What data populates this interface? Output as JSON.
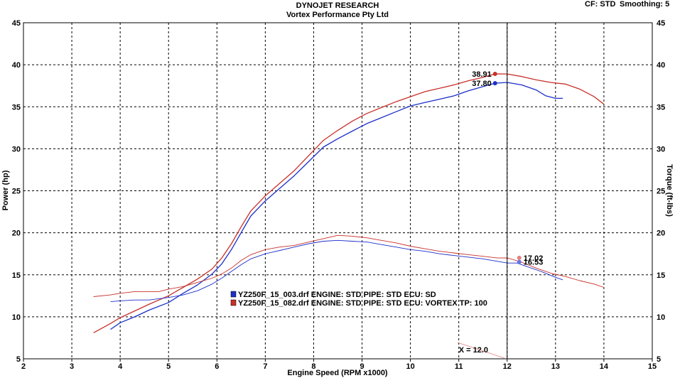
{
  "header": {
    "title": "DYNOJET RESEARCH",
    "subtitle": "Vortex Performance Pty Ltd",
    "cf_label": "CF: STD",
    "smoothing_label": "Smoothing: 5"
  },
  "colors": {
    "blue": "#1c2fc8",
    "red": "#c8302a",
    "blue_light": "#6c74e0",
    "red_light": "#e6817a",
    "grid": "#000000"
  },
  "chart_data": {
    "type": "line",
    "xlabel": "Engine Speed (RPM x1000)",
    "ylabel": "Power (hp)",
    "y2label": "Torque (ft-lbs)",
    "xlim": [
      2,
      15
    ],
    "ylim": [
      5,
      45
    ],
    "y2lim": [
      5,
      45
    ],
    "x_ticks": [
      "2",
      "3",
      "4",
      "5",
      "6",
      "7",
      "8",
      "9",
      "10",
      "11",
      "12",
      "13",
      "14",
      "15"
    ],
    "y_ticks": [
      "5",
      "10",
      "15",
      "20",
      "25",
      "30",
      "35",
      "40",
      "45"
    ],
    "grid": "dashed",
    "cursor": {
      "x": 12.0,
      "label": "X = 12.0"
    },
    "legend": [
      {
        "swatch": "blue",
        "text": "YZ250F_15_003.drf ENGINE: STD PIPE: STD ECU: SD"
      },
      {
        "swatch": "red",
        "text": "YZ250F_15_082.drf ENGINE: STD PIPE: STD ECU: VORTEX TP: 100"
      }
    ],
    "series": [
      {
        "kind": "power",
        "color": "blue",
        "x": [
          3.8,
          4.0,
          4.3,
          4.6,
          5.0,
          5.3,
          5.6,
          5.9,
          6.1,
          6.3,
          6.5,
          6.7,
          7.0,
          7.3,
          7.6,
          7.9,
          8.2,
          8.5,
          8.8,
          9.1,
          9.4,
          9.7,
          10.0,
          10.3,
          10.6,
          10.9,
          11.2,
          11.5,
          11.75,
          12.0,
          12.3,
          12.6,
          12.8,
          13.0,
          13.15
        ],
        "y": [
          8.5,
          9.3,
          10.0,
          10.8,
          11.7,
          12.8,
          13.8,
          15.1,
          16.3,
          18.0,
          20.0,
          22.0,
          23.8,
          25.3,
          26.8,
          28.5,
          30.2,
          31.2,
          32.1,
          33.0,
          33.7,
          34.4,
          35.1,
          35.5,
          35.9,
          36.3,
          36.9,
          37.4,
          37.8,
          37.9,
          37.6,
          37.0,
          36.3,
          36.0,
          36.0
        ]
      },
      {
        "kind": "power",
        "color": "red",
        "x": [
          3.45,
          3.8,
          4.0,
          4.3,
          4.6,
          5.0,
          5.3,
          5.6,
          5.9,
          6.1,
          6.3,
          6.5,
          6.7,
          7.0,
          7.3,
          7.6,
          7.9,
          8.2,
          8.5,
          8.8,
          9.1,
          9.4,
          9.7,
          10.0,
          10.3,
          10.6,
          10.9,
          11.2,
          11.5,
          11.75,
          12.0,
          12.3,
          12.6,
          12.9,
          13.2,
          13.5,
          13.8,
          14.0
        ],
        "y": [
          8.1,
          9.2,
          9.9,
          10.7,
          11.5,
          12.5,
          13.5,
          14.5,
          15.7,
          17.0,
          18.7,
          20.7,
          22.6,
          24.4,
          25.9,
          27.4,
          29.2,
          31.0,
          32.2,
          33.3,
          34.2,
          34.9,
          35.6,
          36.2,
          36.8,
          37.2,
          37.6,
          38.1,
          38.5,
          38.91,
          38.9,
          38.6,
          38.2,
          37.9,
          37.7,
          37.1,
          36.2,
          35.3
        ]
      },
      {
        "kind": "torque",
        "color": "blue",
        "x": [
          3.8,
          4.0,
          4.3,
          4.6,
          5.0,
          5.3,
          5.6,
          5.9,
          6.1,
          6.3,
          6.5,
          6.7,
          7.0,
          7.3,
          7.6,
          7.9,
          8.2,
          8.5,
          8.8,
          9.1,
          9.4,
          9.7,
          10.0,
          10.3,
          10.6,
          10.9,
          11.2,
          11.5,
          11.8,
          12.0,
          12.2,
          12.4,
          12.7,
          13.0,
          13.15
        ],
        "y": [
          11.8,
          11.9,
          12.0,
          12.0,
          12.3,
          12.6,
          13.1,
          13.9,
          14.6,
          15.4,
          16.2,
          16.9,
          17.5,
          17.9,
          18.3,
          18.7,
          19.0,
          19.1,
          19.0,
          18.9,
          18.6,
          18.3,
          18.0,
          17.8,
          17.5,
          17.3,
          17.1,
          16.9,
          16.6,
          16.4,
          16.4,
          16.0,
          15.4,
          14.7,
          14.4
        ]
      },
      {
        "kind": "torque",
        "color": "red",
        "x": [
          3.45,
          3.8,
          4.0,
          4.3,
          4.6,
          4.8,
          5.0,
          5.3,
          5.6,
          5.9,
          6.1,
          6.3,
          6.5,
          6.7,
          7.0,
          7.3,
          7.6,
          7.9,
          8.2,
          8.5,
          8.8,
          9.1,
          9.4,
          9.7,
          10.0,
          10.3,
          10.6,
          10.9,
          11.2,
          11.5,
          11.8,
          12.0,
          12.3,
          12.6,
          12.9,
          13.2,
          13.5,
          13.8,
          14.0
        ],
        "y": [
          12.4,
          12.6,
          12.8,
          13.0,
          13.0,
          13.0,
          13.3,
          13.6,
          14.1,
          14.6,
          15.1,
          15.8,
          16.7,
          17.4,
          18.0,
          18.3,
          18.5,
          18.9,
          19.3,
          19.7,
          19.6,
          19.4,
          19.1,
          18.8,
          18.4,
          18.1,
          17.8,
          17.6,
          17.4,
          17.2,
          17.0,
          17.02,
          16.5,
          15.8,
          15.2,
          14.8,
          14.3,
          13.9,
          13.5
        ]
      }
    ],
    "peak_markers": [
      {
        "x": 11.75,
        "y": 38.91,
        "label": "38.91",
        "color": "red",
        "side": "left"
      },
      {
        "x": 11.75,
        "y": 37.8,
        "label": "37.80",
        "color": "blue",
        "side": "left"
      },
      {
        "x": 12.25,
        "y": 17.02,
        "label": "17.02",
        "color": "red_light",
        "side": "right"
      },
      {
        "x": 12.25,
        "y": 16.53,
        "label": "16.53",
        "color": "blue_light",
        "side": "right"
      }
    ]
  }
}
